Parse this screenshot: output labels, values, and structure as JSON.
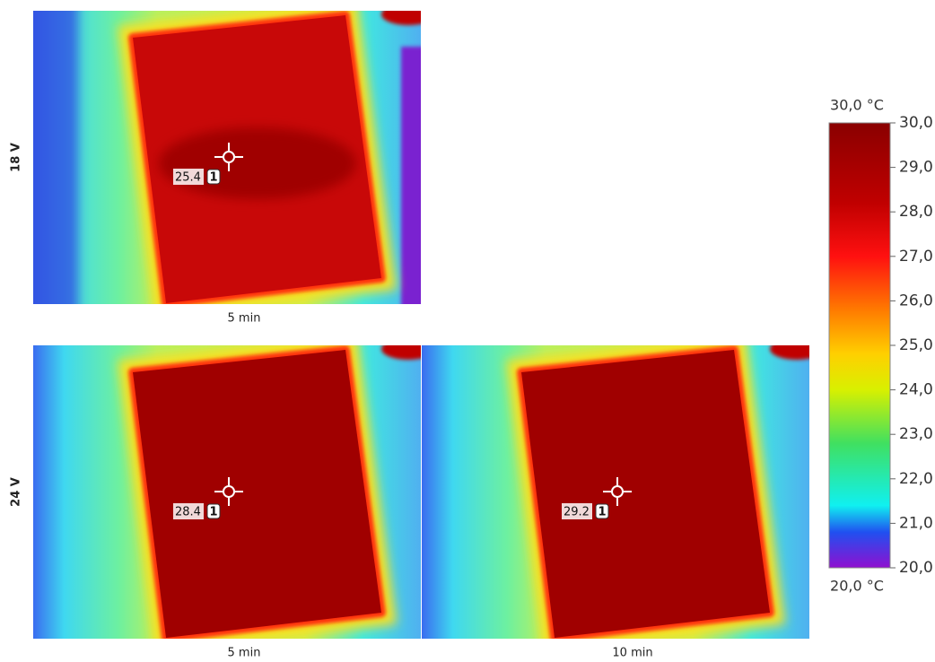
{
  "rows": [
    {
      "label": "18 V",
      "images": [
        {
          "caption": "5 min",
          "reading": 25.4,
          "marker": "1"
        }
      ]
    },
    {
      "label": "24 V",
      "images": [
        {
          "caption": "5 min",
          "reading": 28.4,
          "marker": "1"
        },
        {
          "caption": "10 min",
          "reading": 29.2,
          "marker": "1"
        }
      ]
    }
  ],
  "colorbar": {
    "max_label": "30,0 °C",
    "min_label": "20,0 °C",
    "range": [
      20,
      30
    ],
    "ticks": [
      {
        "value": 30,
        "label": "30,0"
      },
      {
        "value": 29,
        "label": "29,0"
      },
      {
        "value": 28,
        "label": "28,0"
      },
      {
        "value": 27,
        "label": "27,0"
      },
      {
        "value": 26,
        "label": "26,0"
      },
      {
        "value": 25,
        "label": "25,0"
      },
      {
        "value": 24,
        "label": "24,0"
      },
      {
        "value": 23,
        "label": "23,0"
      },
      {
        "value": 22,
        "label": "22,0"
      },
      {
        "value": 21,
        "label": "21,0"
      },
      {
        "value": 20,
        "label": "20,0"
      }
    ]
  }
}
